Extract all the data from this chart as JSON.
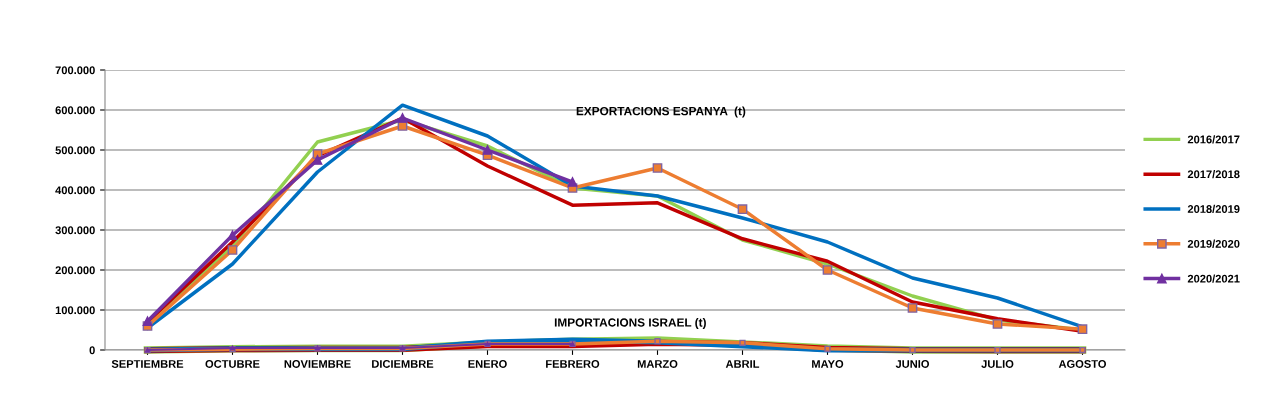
{
  "chart_data": {
    "type": "line",
    "categories": [
      "SEPTIEMBRE",
      "OCTUBRE",
      "NOVIEMBRE",
      "DICIEMBRE",
      "ENERO",
      "FEBRERO",
      "MARZO",
      "ABRIL",
      "MAYO",
      "JUNIO",
      "JULIO",
      "AGOSTO"
    ],
    "series": [
      {
        "name": "2016/2017",
        "color": "#92d050",
        "marker": "none",
        "values": [
          65000,
          260000,
          520000,
          575000,
          510000,
          405000,
          385000,
          275000,
          215000,
          135000,
          75000,
          50000
        ]
      },
      {
        "name": "2017/2018",
        "color": "#c00000",
        "marker": "none",
        "values": [
          70000,
          270000,
          485000,
          580000,
          460000,
          362000,
          368000,
          278000,
          222000,
          120000,
          78000,
          47000
        ]
      },
      {
        "name": "2018/2019",
        "color": "#0070c0",
        "marker": "none",
        "values": [
          55000,
          215000,
          445000,
          612000,
          535000,
          410000,
          385000,
          330000,
          270000,
          180000,
          130000,
          58000
        ]
      },
      {
        "name": "2019/2020",
        "color": "#ed7d31",
        "marker": "square",
        "values": [
          60000,
          250000,
          490000,
          560000,
          487000,
          405000,
          455000,
          352000,
          200000,
          105000,
          65000,
          52000
        ]
      },
      {
        "name": "2020/2021",
        "color": "#7030a0",
        "marker": "triangle",
        "values": [
          72000,
          287000,
          475000,
          580000,
          500000,
          420000,
          null,
          null,
          null,
          null,
          null,
          null
        ]
      },
      {
        "color": "#92d050",
        "marker": "none",
        "values": [
          0,
          3000,
          4000,
          4000,
          15000,
          22000,
          25000,
          15000,
          5000,
          0,
          0,
          0
        ]
      },
      {
        "color": "#c00000",
        "marker": "none",
        "values": [
          0,
          2000,
          3000,
          3000,
          12000,
          12000,
          18000,
          15000,
          3000,
          0,
          0,
          0
        ]
      },
      {
        "color": "#0070c0",
        "marker": "none",
        "values": [
          0,
          3000,
          3000,
          3000,
          20000,
          25000,
          20000,
          10000,
          0,
          0,
          0,
          0
        ]
      },
      {
        "color": "#ed7d31",
        "marker": "square",
        "values": [
          0,
          2000,
          4000,
          4000,
          15000,
          15000,
          22000,
          18000,
          3000,
          0,
          0,
          0
        ]
      },
      {
        "color": "#7030a0",
        "marker": "triangle",
        "values": [
          0,
          5000,
          5000,
          5000,
          15000,
          15000,
          null,
          null,
          null,
          null,
          null,
          null
        ]
      }
    ],
    "ylim": [
      0,
      700000
    ],
    "yticks": [
      {
        "value": 0,
        "label": "0"
      },
      {
        "value": 100000,
        "label": "100.000"
      },
      {
        "value": 200000,
        "label": "200.000"
      },
      {
        "value": 300000,
        "label": "300.000"
      },
      {
        "value": 400000,
        "label": "400.000"
      },
      {
        "value": 500000,
        "label": "500.000"
      },
      {
        "value": 600000,
        "label": "600.000"
      },
      {
        "value": 700000,
        "label": "700.000"
      }
    ],
    "annotations": [
      "EXPORTACIONS ESPANYA  (t)",
      "IMPORTACIONS ISRAEL (t)"
    ],
    "grid": "y",
    "legend": "right",
    "line_style": "solid"
  }
}
